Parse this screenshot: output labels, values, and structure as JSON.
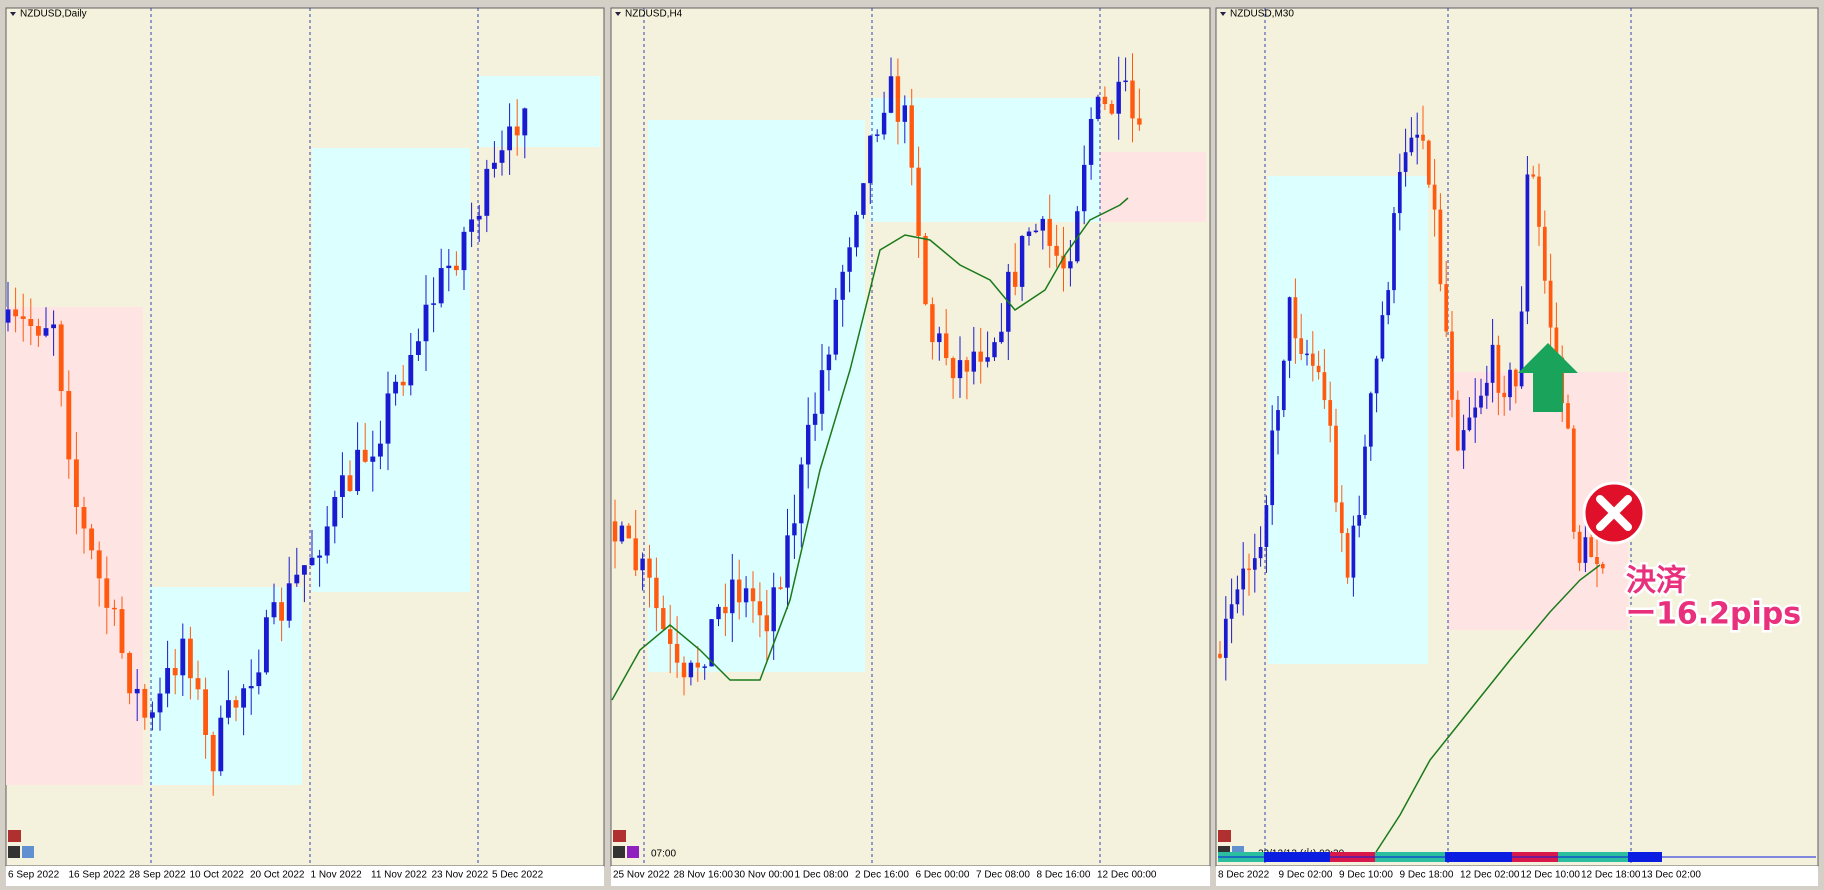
{
  "panels": [
    {
      "title": "NZDUSD,Daily",
      "xlabels": [
        "6 Sep 2022",
        "16 Sep 2022",
        "28 Sep 2022",
        "10 Oct 2022",
        "20 Oct 2022",
        "1 Nov 2022",
        "11 Nov 2022",
        "23 Nov 2022",
        "5 Dec 2022"
      ]
    },
    {
      "title": "NZDUSD,H4",
      "time": "07:00",
      "xlabels": [
        "25 Nov 2022",
        "28 Nov 16:00",
        "30 Nov 00:00",
        "1 Dec 08:00",
        "2 Dec 16:00",
        "6 Dec 00:00",
        "7 Dec 08:00",
        "8 Dec 16:00",
        "12 Dec 00:00"
      ]
    },
    {
      "title": "NZDUSD,M30",
      "time": "22/12/13 (火) 03:30",
      "xlabels": [
        "8 Dec 2022",
        "9 Dec 02:00",
        "9 Dec 10:00",
        "9 Dec 18:00",
        "12 Dec 02:00",
        "12 Dec 10:00",
        "12 Dec 18:00",
        "13 Dec 02:00"
      ]
    }
  ],
  "annotation": {
    "line1": "決済",
    "line2": "ー16.2pips"
  }
}
